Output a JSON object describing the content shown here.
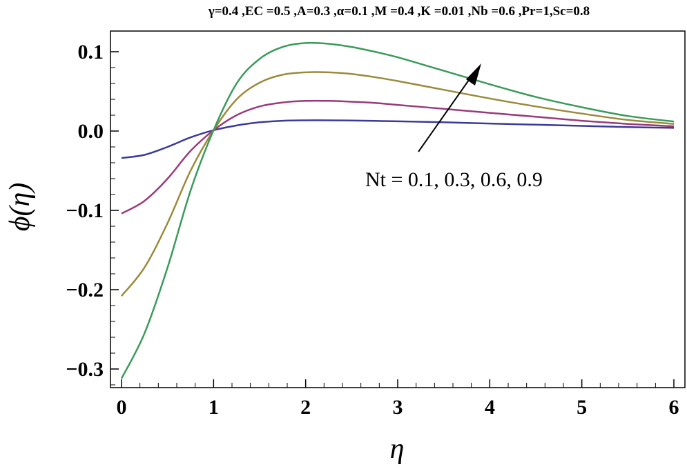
{
  "chart_data": {
    "type": "line",
    "title": "γ=0.4 ,EC =0.5 ,A=0.3 ,α=0.1 ,M =0.4 ,K =0.01 ,Nb =0.6 ,Pr=1,Sc=0.8",
    "xlabel": "η",
    "ylabel": "ϕ(η)",
    "xlim": [
      0,
      6
    ],
    "ylim": [
      -0.33,
      0.12
    ],
    "x_ticks": [
      "0",
      "1",
      "2",
      "3",
      "4",
      "5",
      "6"
    ],
    "y_ticks": [
      "0.1",
      "0.0",
      "−0.1",
      "−0.2",
      "−0.3"
    ],
    "grid": false,
    "annotation": "Nt = 0.1, 0.3, 0.6, 0.9",
    "colors": [
      "#3a3a9a",
      "#9a3a7a",
      "#9a8a3a",
      "#3a9a5a"
    ],
    "x": [
      0,
      0.25,
      0.5,
      0.75,
      1.0,
      1.25,
      1.5,
      1.75,
      2.0,
      2.25,
      2.5,
      2.75,
      3.0,
      3.5,
      4.0,
      4.5,
      5.0,
      5.5,
      6.0
    ],
    "series": [
      {
        "values": [
          -0.034,
          -0.03,
          -0.02,
          -0.008,
          0.001,
          0.007,
          0.011,
          0.013,
          0.0135,
          0.0135,
          0.0132,
          0.0128,
          0.0123,
          0.011,
          0.0095,
          0.008,
          0.0065,
          0.005,
          0.004
        ]
      },
      {
        "values": [
          -0.104,
          -0.088,
          -0.06,
          -0.025,
          0.001,
          0.02,
          0.031,
          0.036,
          0.038,
          0.038,
          0.037,
          0.0355,
          0.033,
          0.028,
          0.023,
          0.018,
          0.013,
          0.009,
          0.006
        ]
      },
      {
        "values": [
          -0.208,
          -0.172,
          -0.116,
          -0.05,
          0.001,
          0.04,
          0.061,
          0.071,
          0.074,
          0.074,
          0.072,
          0.068,
          0.063,
          0.052,
          0.041,
          0.031,
          0.022,
          0.014,
          0.009
        ]
      },
      {
        "values": [
          -0.312,
          -0.255,
          -0.172,
          -0.075,
          0.001,
          0.06,
          0.091,
          0.106,
          0.111,
          0.11,
          0.106,
          0.1,
          0.093,
          0.076,
          0.059,
          0.043,
          0.03,
          0.019,
          0.012
        ]
      }
    ]
  }
}
